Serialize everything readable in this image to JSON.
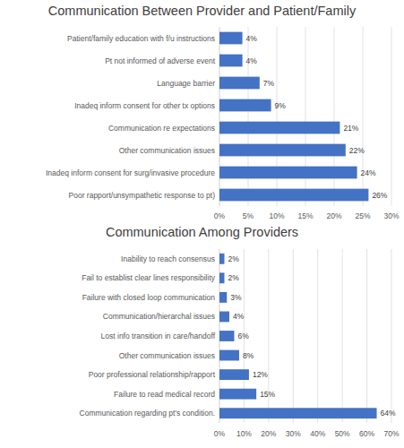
{
  "chart_data": [
    {
      "type": "bar",
      "orientation": "horizontal",
      "title": "Communication Between Provider and Patient/Family",
      "categories": [
        "Patient/family education with f/u instructions",
        "Pt not informed of adverse event",
        "Language barrier",
        "Inadeq inform consent for other tx options",
        "Communication re expectations",
        "Other communication issues",
        "Inadeq inform consent for surg/invasive procedure",
        "Poor rapport/unsympathetic response to pt)"
      ],
      "values": [
        4,
        4,
        7,
        9,
        21,
        22,
        24,
        26
      ],
      "value_labels": [
        "4%",
        "4%",
        "7%",
        "9%",
        "21%",
        "22%",
        "24%",
        "26%"
      ],
      "color": "#4472c4",
      "xlim": [
        0,
        30
      ],
      "xticks": [
        {
          "value": 0,
          "label": "0%"
        },
        {
          "value": 5,
          "label": "5%"
        },
        {
          "value": 10,
          "label": "10%"
        },
        {
          "value": 15,
          "label": "15%"
        },
        {
          "value": 20,
          "label": "20%"
        },
        {
          "value": 25,
          "label": "25%"
        },
        {
          "value": 30,
          "label": "30%"
        }
      ],
      "grid": true,
      "data_labels": true
    },
    {
      "type": "bar",
      "orientation": "horizontal",
      "title": "Communication Among Providers",
      "categories": [
        "Inability to reach consensus",
        "Fail to establist clear lines responsibility",
        "Failure with closed loop communication",
        "Communication/hierarchal issues",
        "Lost info transition in care/handoff",
        "Other communication issues",
        "Poor professional relationship/rapport",
        "Failure to read medical record",
        "Communication regarding pt's condition."
      ],
      "values": [
        2,
        2,
        3,
        4,
        6,
        8,
        12,
        15,
        64
      ],
      "value_labels": [
        "2%",
        "2%",
        "3%",
        "4%",
        "6%",
        "8%",
        "12%",
        "15%",
        "64%"
      ],
      "color": "#4472c4",
      "xlim": [
        0,
        70
      ],
      "xticks": [
        {
          "value": 0,
          "label": "0%"
        },
        {
          "value": 10,
          "label": "10%"
        },
        {
          "value": 20,
          "label": "20%"
        },
        {
          "value": 30,
          "label": "30%"
        },
        {
          "value": 40,
          "label": "40%"
        },
        {
          "value": 50,
          "label": "50%"
        },
        {
          "value": 60,
          "label": "60%"
        },
        {
          "value": 70,
          "label": "70%"
        }
      ],
      "grid": true,
      "data_labels": true
    }
  ]
}
